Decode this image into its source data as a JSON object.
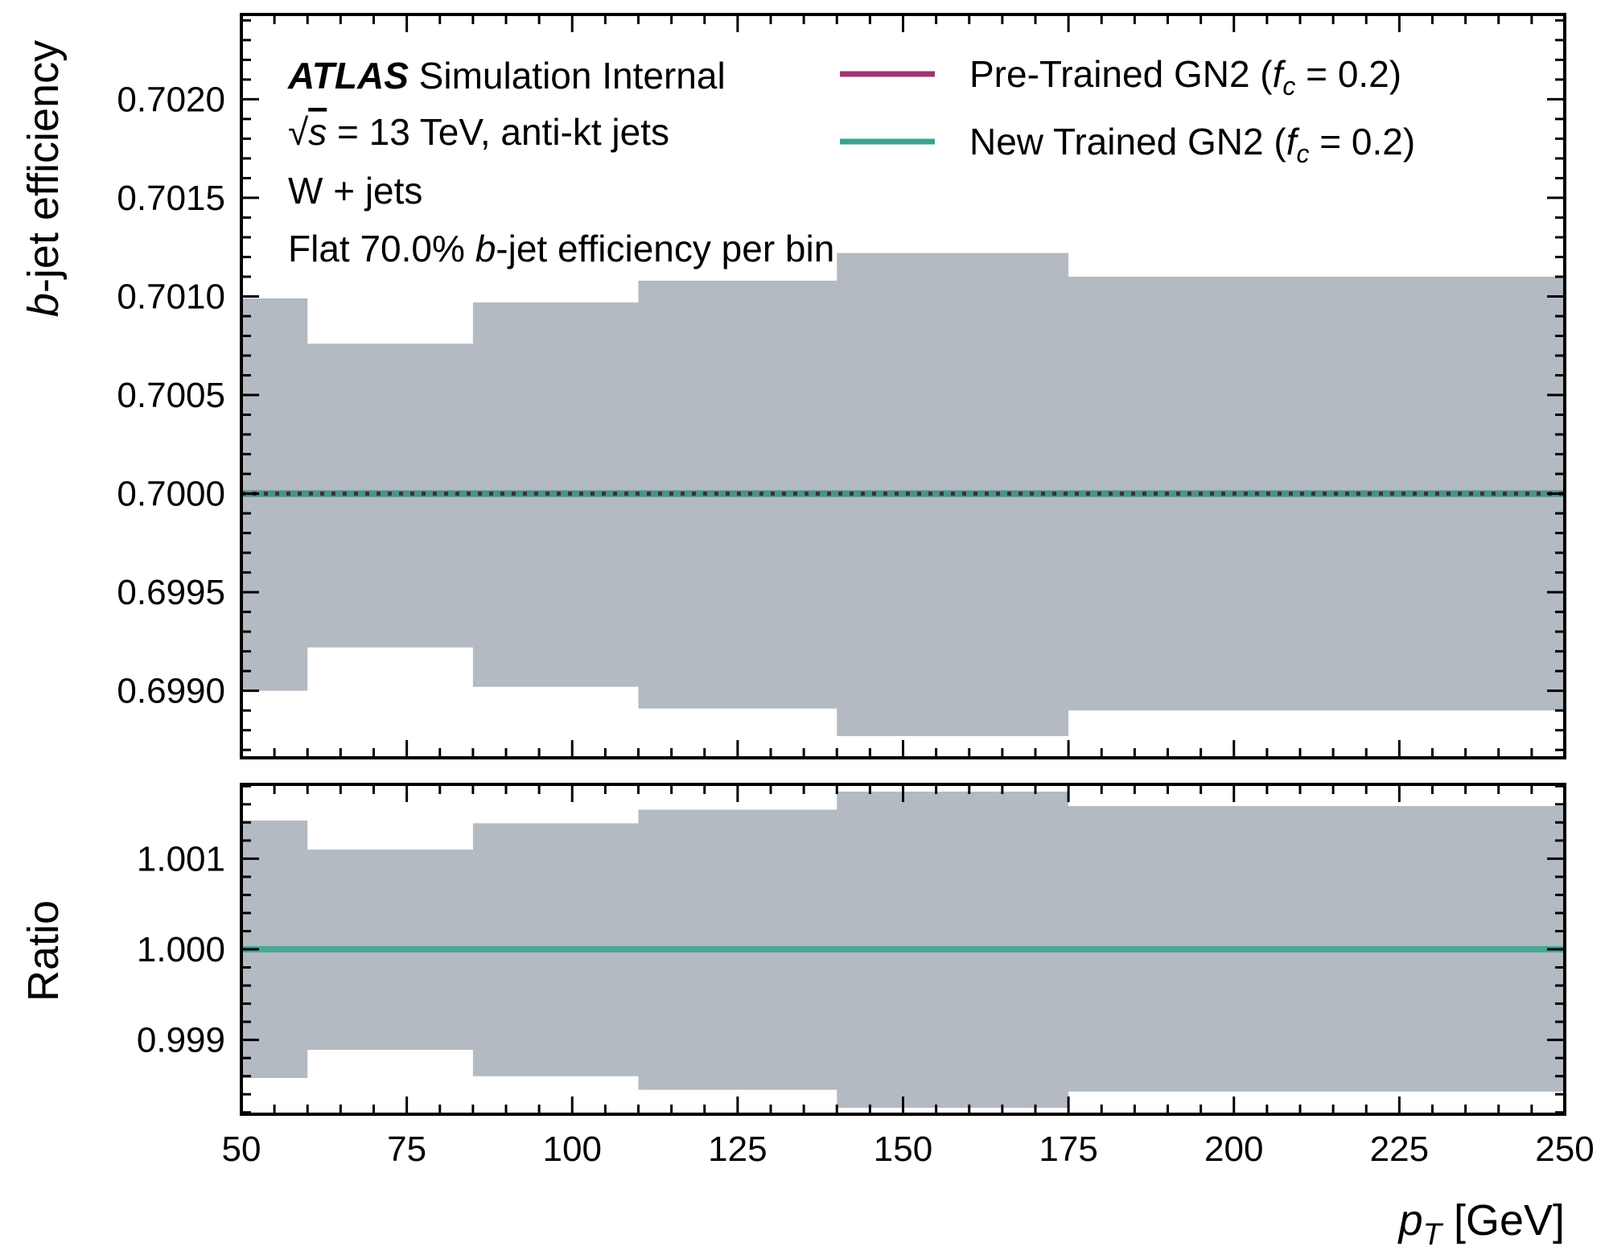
{
  "chart_data": [
    {
      "type": "line",
      "panel": "main",
      "ylabel_italic": "b",
      "ylabel_rest": "-jet efficiency",
      "ylim": [
        0.69866,
        0.70243
      ],
      "yticks": [
        0.699,
        0.6995,
        0.7,
        0.7005,
        0.701,
        0.7015,
        0.702
      ],
      "ytick_labels": [
        "0.6990",
        "0.6995",
        "0.7000",
        "0.7005",
        "0.7010",
        "0.7015",
        "0.7020"
      ],
      "xlim": [
        50,
        250
      ],
      "bin_edges": [
        50,
        60,
        85,
        110,
        140,
        175,
        250
      ],
      "band_upper": [
        0.70099,
        0.70076,
        0.70097,
        0.70108,
        0.70122,
        0.7011
      ],
      "band_lower": [
        0.699,
        0.69922,
        0.69902,
        0.69891,
        0.69877,
        0.6989
      ],
      "band_color": "#b3bac2",
      "series": [
        {
          "name": "Pre-Trained GN2",
          "color": "#a0346f",
          "values": [
            0.7,
            0.7,
            0.7,
            0.7,
            0.7,
            0.7
          ]
        },
        {
          "name": "New Trained GN2",
          "color": "#3aa28e",
          "values": [
            0.7,
            0.7,
            0.7,
            0.7,
            0.7,
            0.7
          ]
        }
      ],
      "reference_line": {
        "value": 0.7,
        "style": "dotted",
        "color": "#333333"
      },
      "legend_placement": "top-right",
      "grid": false
    },
    {
      "type": "line",
      "panel": "ratio",
      "ylabel": "Ratio",
      "ylim": [
        0.99818,
        1.00182
      ],
      "yticks": [
        0.999,
        1.0,
        1.001
      ],
      "ytick_labels": [
        "0.999",
        "1.000",
        "1.001"
      ],
      "xlim": [
        50,
        250
      ],
      "xticks": [
        50,
        75,
        100,
        125,
        150,
        175,
        200,
        225,
        250
      ],
      "xtick_labels": [
        "50",
        "75",
        "100",
        "125",
        "150",
        "175",
        "200",
        "225",
        "250"
      ],
      "xlabel_italic": "p",
      "xlabel_sub": "T",
      "xlabel_rest": " [GeV]",
      "bin_edges": [
        50,
        60,
        85,
        110,
        140,
        175,
        250
      ],
      "band_upper": [
        1.00142,
        1.0011,
        1.00139,
        1.00154,
        1.00174,
        1.00158
      ],
      "band_lower": [
        0.99858,
        0.99889,
        0.9986,
        0.99845,
        0.99825,
        0.99843
      ],
      "band_color": "#b3bac2",
      "series": [
        {
          "name": "New Trained GN2",
          "color": "#3aa28e",
          "values": [
            1.0,
            1.0,
            1.0,
            1.0,
            1.0,
            1.0
          ]
        }
      ],
      "grid": false
    }
  ],
  "annotations": {
    "atlas": "ATLAS",
    "simulation": " Simulation Internal",
    "energy_sqrt": "√",
    "energy_s": "s",
    "energy_rest": " = 13 TeV, anti-kt jets",
    "process": "W + jets",
    "wp_prefix": "Flat 70.0% ",
    "wp_italic": "b",
    "wp_rest": "-jet efficiency per bin"
  },
  "legend": [
    {
      "label": "Pre-Trained GN2 (",
      "fc_var": "f",
      "fc_sub": "c",
      "fc_rest": " = 0.2)",
      "color": "#a0346f"
    },
    {
      "label": "New Trained GN2 (",
      "fc_var": "f",
      "fc_sub": "c",
      "fc_rest": " = 0.2)",
      "color": "#3aa28e"
    }
  ]
}
